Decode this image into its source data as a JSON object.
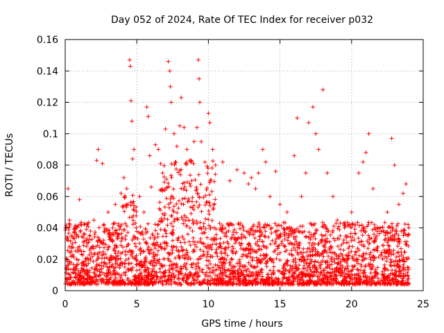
{
  "chart_data": {
    "type": "scatter",
    "title": "Day 052 of 2024, Rate Of TEC Index for receiver p032",
    "xlabel": "GPS time / hours",
    "ylabel": "ROTI / TECUs",
    "xlim": [
      0,
      25
    ],
    "ylim": [
      0,
      0.16
    ],
    "x_ticks": [
      "0",
      "5",
      "10",
      "15",
      "20",
      "25"
    ],
    "y_ticks": [
      "0",
      "0.02",
      "0.04",
      "0.06",
      "0.08",
      "0.1",
      "0.12",
      "0.14",
      "0.16"
    ],
    "grid": true,
    "marker": "+",
    "color": "#ff0000",
    "series": [
      {
        "points": [
          [
            0.1,
            0.015
          ],
          [
            0.2,
            0.065
          ],
          [
            0.3,
            0.045
          ],
          [
            0.5,
            0.03
          ],
          [
            0.8,
            0.02
          ],
          [
            1.0,
            0.058
          ],
          [
            1.3,
            0.025
          ],
          [
            1.7,
            0.035
          ],
          [
            2.0,
            0.045
          ],
          [
            2.2,
            0.083
          ],
          [
            2.3,
            0.09
          ],
          [
            2.6,
            0.081
          ],
          [
            3.0,
            0.05
          ],
          [
            3.5,
            0.055
          ],
          [
            3.9,
            0.062
          ],
          [
            4.1,
            0.072
          ],
          [
            4.3,
            0.065
          ],
          [
            4.5,
            0.147
          ],
          [
            4.55,
            0.143
          ],
          [
            4.6,
            0.121
          ],
          [
            4.65,
            0.108
          ],
          [
            4.7,
            0.084
          ],
          [
            4.8,
            0.09
          ],
          [
            5.2,
            0.06
          ],
          [
            5.5,
            0.05
          ],
          [
            5.7,
            0.117
          ],
          [
            5.8,
            0.111
          ],
          [
            5.9,
            0.086
          ],
          [
            6.0,
            0.066
          ],
          [
            6.3,
            0.093
          ],
          [
            6.5,
            0.09
          ],
          [
            6.8,
            0.075
          ],
          [
            7.0,
            0.103
          ],
          [
            7.2,
            0.146
          ],
          [
            7.3,
            0.14
          ],
          [
            7.35,
            0.13
          ],
          [
            7.4,
            0.12
          ],
          [
            7.6,
            0.1
          ],
          [
            7.8,
            0.092
          ],
          [
            8.0,
            0.105
          ],
          [
            8.1,
            0.123
          ],
          [
            8.3,
            0.104
          ],
          [
            8.5,
            0.09
          ],
          [
            8.7,
            0.083
          ],
          [
            9.0,
            0.095
          ],
          [
            9.2,
            0.104
          ],
          [
            9.3,
            0.147
          ],
          [
            9.35,
            0.135
          ],
          [
            9.4,
            0.12
          ],
          [
            9.5,
            0.095
          ],
          [
            10.0,
            0.113
          ],
          [
            10.1,
            0.107
          ],
          [
            10.3,
            0.09
          ],
          [
            10.5,
            0.08
          ],
          [
            11.0,
            0.082
          ],
          [
            11.5,
            0.07
          ],
          [
            12.0,
            0.077
          ],
          [
            12.5,
            0.075
          ],
          [
            12.8,
            0.068
          ],
          [
            13.0,
            0.072
          ],
          [
            13.3,
            0.065
          ],
          [
            13.5,
            0.075
          ],
          [
            13.8,
            0.09
          ],
          [
            14.0,
            0.082
          ],
          [
            14.3,
            0.06
          ],
          [
            14.7,
            0.076
          ],
          [
            15.0,
            0.055
          ],
          [
            15.5,
            0.05
          ],
          [
            16.0,
            0.086
          ],
          [
            16.2,
            0.11
          ],
          [
            16.5,
            0.06
          ],
          [
            16.8,
            0.075
          ],
          [
            17.0,
            0.107
          ],
          [
            17.3,
            0.117
          ],
          [
            17.5,
            0.1
          ],
          [
            17.7,
            0.09
          ],
          [
            18.0,
            0.128
          ],
          [
            18.3,
            0.075
          ],
          [
            18.7,
            0.06
          ],
          [
            19.0,
            0.045
          ],
          [
            19.5,
            0.04
          ],
          [
            20.0,
            0.05
          ],
          [
            20.5,
            0.075
          ],
          [
            20.8,
            0.082
          ],
          [
            21.0,
            0.088
          ],
          [
            21.2,
            0.1
          ],
          [
            21.5,
            0.065
          ],
          [
            22.0,
            0.04
          ],
          [
            22.5,
            0.05
          ],
          [
            22.8,
            0.097
          ],
          [
            23.0,
            0.08
          ],
          [
            23.3,
            0.055
          ],
          [
            23.6,
            0.062
          ],
          [
            23.8,
            0.068
          ],
          [
            24.0,
            0.04
          ]
        ]
      }
    ]
  }
}
